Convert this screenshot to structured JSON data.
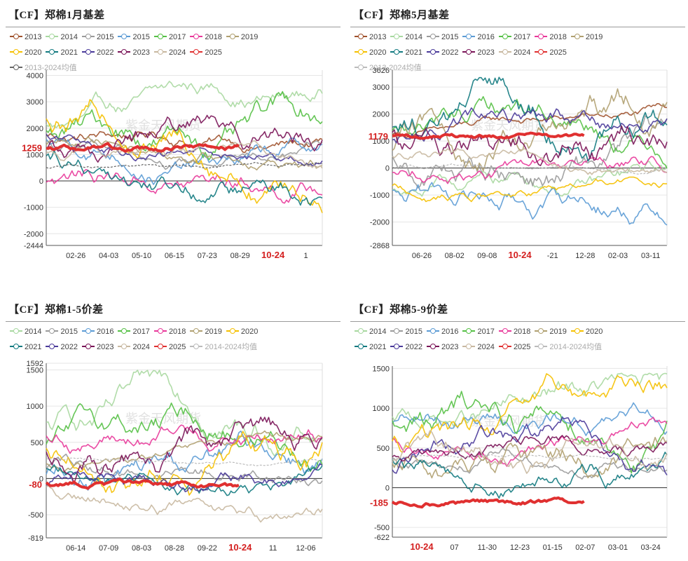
{
  "watermark": "紫金天风期货",
  "chart_data": [
    {
      "id": "p1",
      "type": "line",
      "title": "【CF】郑棉1月基差",
      "legend": [
        "2013",
        "2014",
        "2015",
        "2015",
        "2017",
        "2018",
        "2019",
        "2020",
        "2021",
        "2022",
        "2023",
        "2024",
        "2025",
        "2013-2024均值"
      ],
      "legend_colors": [
        "#a0522d",
        "#a8d8a0",
        "#9a9a9a",
        "#5b9bd5",
        "#55c045",
        "#e8389a",
        "#b0a070",
        "#f5c000",
        "#127a80",
        "#4a3a9a",
        "#7a1458",
        "#c8b8a0",
        "#e03030",
        "#666666"
      ],
      "y_ticks": [
        "4000",
        "3000",
        "2000",
        "1000",
        "0",
        "-1000",
        "-2000",
        "-2444"
      ],
      "y_tick_values": [
        4000,
        3000,
        2000,
        1000,
        0,
        -1000,
        -2000,
        -2444
      ],
      "ylim": [
        -2444,
        4200
      ],
      "x_ticks": [
        "02-26",
        "04-03",
        "05-10",
        "06-15",
        "07-23",
        "08-29",
        "10-24",
        "1"
      ],
      "highlight_x": "10-24",
      "current_value": "1259",
      "current_value_num": 1259
    },
    {
      "id": "p2",
      "type": "line",
      "title": "【CF】郑棉5月基差",
      "legend": [
        "2013",
        "2014",
        "2015",
        "2016",
        "2017",
        "2018",
        "2019",
        "2020",
        "2021",
        "2022",
        "2023",
        "2024",
        "2025",
        "2013-2024均值"
      ],
      "legend_colors": [
        "#a0522d",
        "#a8d8a0",
        "#9a9a9a",
        "#5b9bd5",
        "#55c045",
        "#e8389a",
        "#b0a070",
        "#f5c000",
        "#127a80",
        "#4a3a9a",
        "#7a1458",
        "#c8b8a0",
        "#e03030",
        "#bbbbbb"
      ],
      "y_ticks": [
        "3626",
        "3000",
        "2000",
        "1000",
        "0",
        "-1000",
        "-2000",
        "-2868"
      ],
      "y_tick_values": [
        3626,
        3000,
        2000,
        1000,
        0,
        -1000,
        -2000,
        -2868
      ],
      "ylim": [
        -2868,
        3626
      ],
      "x_ticks": [
        "06-26",
        "08-02",
        "09-08",
        "10-24",
        "-21",
        "12-28",
        "02-03",
        "03-11"
      ],
      "highlight_x": "10-24",
      "current_value": "1179",
      "current_value_num": 1179
    },
    {
      "id": "p3",
      "type": "line",
      "title": "【CF】郑棉1-5价差",
      "legend": [
        "2014",
        "2015",
        "2016",
        "2017",
        "2018",
        "2019",
        "2020",
        "2021",
        "2022",
        "2023",
        "2024",
        "2025",
        "2014-2024均值"
      ],
      "legend_colors": [
        "#a8d8a0",
        "#9a9a9a",
        "#5b9bd5",
        "#55c045",
        "#e8389a",
        "#b0a070",
        "#f5c000",
        "#127a80",
        "#4a3a9a",
        "#7a1458",
        "#c8b8a0",
        "#e03030",
        "#bbbbbb"
      ],
      "y_ticks": [
        "1592",
        "1500",
        "1000",
        "500",
        "0",
        "-500",
        "-819"
      ],
      "y_tick_values": [
        1592,
        1500,
        1000,
        500,
        0,
        -500,
        -819
      ],
      "ylim": [
        -819,
        1592
      ],
      "x_ticks": [
        "06-14",
        "07-09",
        "08-03",
        "08-28",
        "09-22",
        "10-24",
        "11",
        "12-06"
      ],
      "highlight_x": "10-24",
      "current_value": "-80",
      "current_value_num": -80
    },
    {
      "id": "p4",
      "type": "line",
      "title": "【CF】郑棉5-9价差",
      "legend": [
        "2014",
        "2015",
        "2016",
        "2017",
        "2018",
        "2019",
        "2020",
        "2021",
        "2022",
        "2023",
        "2024",
        "2025",
        "2014-2024均值"
      ],
      "legend_colors": [
        "#a8d8a0",
        "#9a9a9a",
        "#5b9bd5",
        "#55c045",
        "#e8389a",
        "#b0a070",
        "#f5c000",
        "#127a80",
        "#4a3a9a",
        "#7a1458",
        "#c8b8a0",
        "#e03030",
        "#bbbbbb"
      ],
      "y_ticks": [
        "1500",
        "1000",
        "500",
        "0",
        "-500",
        "-622"
      ],
      "y_tick_values": [
        1500,
        1000,
        500,
        0,
        -500,
        -622
      ],
      "ylim": [
        -622,
        1530
      ],
      "x_ticks": [
        "10-24",
        "07",
        "11-30",
        "12-23",
        "01-15",
        "02-07",
        "03-01",
        "03-24"
      ],
      "highlight_x": "10-24",
      "current_value": "-185",
      "current_value_num": -185
    }
  ]
}
